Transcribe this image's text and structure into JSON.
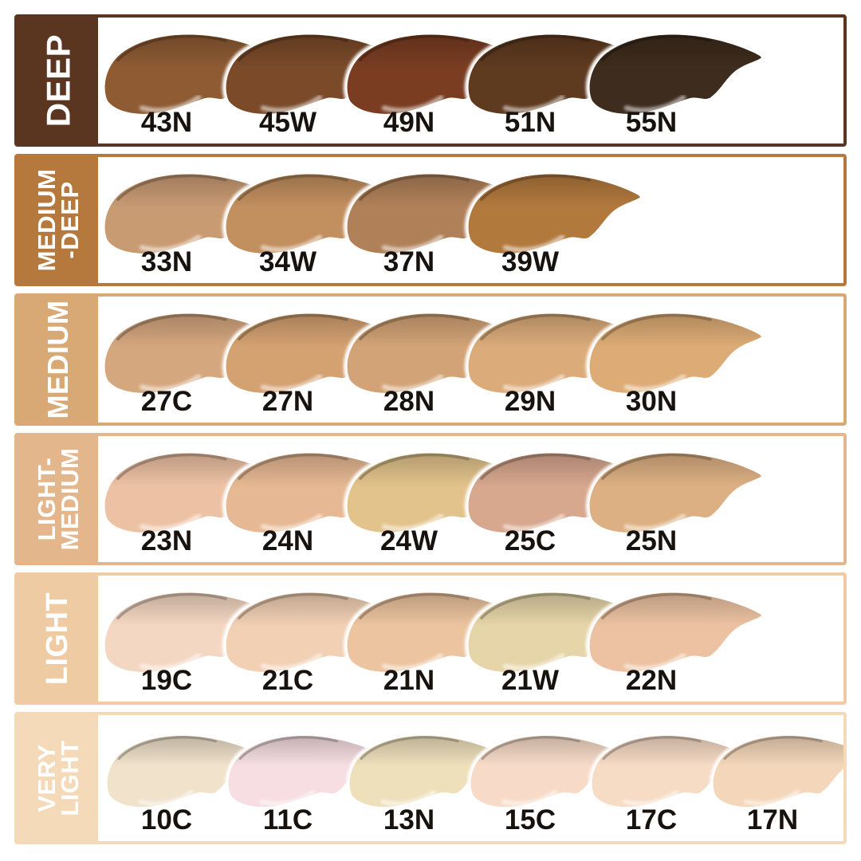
{
  "page_background": "#FFFFFF",
  "text_color": "#17120E",
  "label_text_color": "#FFFFFF",
  "chart_data": {
    "type": "table",
    "description": "Foundation shade chart: six depth categories, each with smear swatches and shade codes",
    "categories": [
      "DEEP",
      "MEDIUM-DEEP",
      "MEDIUM",
      "LIGHT-MEDIUM",
      "LIGHT",
      "VERY LIGHT"
    ],
    "rows": [
      {
        "category": "DEEP",
        "label_lines": [
          "DEEP"
        ],
        "band_color": "#5A3621",
        "shades": [
          {
            "code": "43N",
            "color": "#8E5B33"
          },
          {
            "code": "45W",
            "color": "#7A4A29"
          },
          {
            "code": "49N",
            "color": "#7A3D22"
          },
          {
            "code": "51N",
            "color": "#5E3A1F"
          },
          {
            "code": "55N",
            "color": "#3E2C1E"
          }
        ]
      },
      {
        "category": "MEDIUM-DEEP",
        "label_lines": [
          "MEDIUM",
          "-DEEP"
        ],
        "band_color": "#B5793E",
        "shades": [
          {
            "code": "33N",
            "color": "#C99B73"
          },
          {
            "code": "34W",
            "color": "#C28F5F"
          },
          {
            "code": "37N",
            "color": "#B08159"
          },
          {
            "code": "39W",
            "color": "#B2793D"
          }
        ]
      },
      {
        "category": "MEDIUM",
        "label_lines": [
          "MEDIUM"
        ],
        "band_color": "#D9A975",
        "shades": [
          {
            "code": "27C",
            "color": "#D5A77F"
          },
          {
            "code": "27N",
            "color": "#D4A171"
          },
          {
            "code": "28N",
            "color": "#D2A376"
          },
          {
            "code": "29N",
            "color": "#DBAB7A"
          },
          {
            "code": "30N",
            "color": "#DDAC76"
          }
        ]
      },
      {
        "category": "LIGHT-MEDIUM",
        "label_lines": [
          "LIGHT-",
          "MEDIUM"
        ],
        "band_color": "#E3B78B",
        "shades": [
          {
            "code": "23N",
            "color": "#EDC2A4"
          },
          {
            "code": "24N",
            "color": "#E6B893"
          },
          {
            "code": "24W",
            "color": "#E2C38C"
          },
          {
            "code": "25C",
            "color": "#D7A78E"
          },
          {
            "code": "25N",
            "color": "#DDB083"
          }
        ]
      },
      {
        "category": "LIGHT",
        "label_lines": [
          "LIGHT"
        ],
        "band_color": "#EFCBA3",
        "shades": [
          {
            "code": "19C",
            "color": "#F4D7C2"
          },
          {
            "code": "21C",
            "color": "#F1D0B4"
          },
          {
            "code": "21N",
            "color": "#ECC49F"
          },
          {
            "code": "21W",
            "color": "#E6D5A9"
          },
          {
            "code": "22N",
            "color": "#ECC2A2"
          }
        ]
      },
      {
        "category": "VERY LIGHT",
        "label_lines": [
          "VERY",
          "LIGHT"
        ],
        "band_color": "#F4DAB8",
        "shades": [
          {
            "code": "10C",
            "color": "#F0E2CB"
          },
          {
            "code": "11C",
            "color": "#F6DEE2"
          },
          {
            "code": "13N",
            "color": "#EFE0BC"
          },
          {
            "code": "15C",
            "color": "#F7DBC8"
          },
          {
            "code": "17C",
            "color": "#F6DBC5"
          },
          {
            "code": "17N",
            "color": "#F4D7BA"
          }
        ]
      }
    ]
  }
}
